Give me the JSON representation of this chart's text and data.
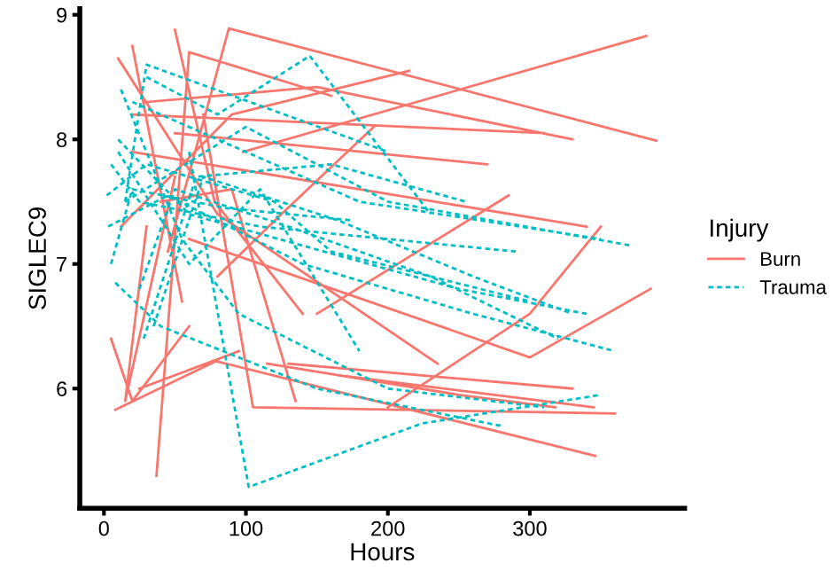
{
  "chart_data": {
    "type": "line",
    "xlabel": "Hours",
    "ylabel": "SIGLEC9",
    "legend_title": "Injury",
    "legend": "right",
    "grid": false,
    "xlim": [
      -17,
      409
    ],
    "ylim": [
      5.04,
      9.05
    ],
    "xticks": [
      0,
      100,
      200,
      300
    ],
    "yticks": [
      6,
      7,
      8,
      9
    ],
    "series": [
      {
        "name": "Burn",
        "color": "#f8766d",
        "line_style": "solid",
        "x": [
          45,
          88,
          389,
          null,
          98,
          382,
          null,
          50,
          78,
          140,
          null,
          10,
          80,
          235,
          null,
          30,
          150,
          330,
          null,
          20,
          310,
          null,
          50,
          270,
          null,
          20,
          340,
          null,
          8,
          79,
          346,
          null,
          12,
          90,
          215,
          null,
          25,
          95,
          null,
          20,
          55,
          null,
          37,
          60,
          160,
          null,
          5,
          20,
          60,
          null,
          135,
          90,
          40,
          null,
          115,
          250,
          318,
          null,
          150,
          285,
          null,
          170,
          345,
          null,
          60,
          300,
          385,
          null,
          200,
          300,
          350,
          null,
          130,
          330,
          null,
          80,
          125,
          190,
          null,
          30,
          15,
          50,
          null,
          70,
          105,
          360
        ],
        "values": [
          7.1,
          8.89,
          7.99,
          null,
          7.9,
          8.83,
          null,
          8.88,
          7.5,
          6.6,
          null,
          8.65,
          7.4,
          6.2,
          null,
          8.3,
          8.42,
          8.0,
          null,
          8.2,
          8.05,
          null,
          8.05,
          7.8,
          null,
          7.9,
          7.3,
          null,
          5.83,
          6.22,
          5.46,
          null,
          7.3,
          8.2,
          8.55,
          null,
          6.0,
          6.3,
          null,
          8.75,
          6.7,
          null,
          5.3,
          8.7,
          8.35,
          null,
          6.4,
          5.9,
          6.5,
          null,
          5.9,
          7.6,
          7.5,
          null,
          6.2,
          5.95,
          5.85,
          null,
          6.6,
          7.55,
          null,
          6.1,
          5.85,
          null,
          7.2,
          6.25,
          6.8,
          null,
          5.85,
          6.6,
          7.3,
          null,
          6.2,
          6.0,
          null,
          6.9,
          7.4,
          8.1,
          null,
          7.3,
          5.9,
          7.7,
          null,
          8.2,
          5.85,
          5.8
        ]
      },
      {
        "name": "Trauma",
        "color": "#00bfc4",
        "line_style": "dashed",
        "x": [
          60,
          102,
          224,
          350,
          null,
          15,
          30,
          200,
          null,
          30,
          80,
          145,
          230,
          null,
          5,
          25,
          110,
          290,
          null,
          20,
          90,
          180,
          350,
          null,
          10,
          60,
          250,
          340,
          null,
          2,
          30,
          120,
          160,
          300,
          null,
          15,
          100,
          200,
          370,
          null,
          25,
          50,
          130,
          230,
          320,
          null,
          8,
          40,
          150,
          280,
          null,
          10,
          60,
          110,
          180,
          null,
          3,
          45,
          140,
          260,
          360,
          null,
          35,
          70,
          165,
          260,
          330,
          null,
          12,
          55,
          95,
          200,
          310,
          null,
          28,
          65,
          160,
          255,
          null,
          5,
          20,
          85,
          175
        ],
        "values": [
          7.9,
          5.21,
          5.72,
          5.95,
          null,
          7.5,
          8.6,
          7.9,
          null,
          8.5,
          8.2,
          8.67,
          7.4,
          null,
          7.8,
          7.5,
          7.3,
          7.1,
          null,
          8.3,
          7.95,
          7.5,
          7.2,
          null,
          8.0,
          7.4,
          6.8,
          6.6,
          null,
          7.55,
          7.8,
          7.5,
          7.1,
          6.7,
          null,
          7.5,
          8.1,
          7.5,
          7.15,
          null,
          6.8,
          7.6,
          7.3,
          6.9,
          6.4,
          null,
          6.85,
          6.5,
          6.0,
          5.7,
          null,
          7.9,
          7.0,
          7.6,
          6.3,
          null,
          7.3,
          7.55,
          7.0,
          6.6,
          6.3,
          null,
          6.5,
          7.7,
          7.35,
          6.9,
          6.6,
          null,
          8.4,
          7.2,
          6.6,
          6.0,
          5.85,
          null,
          6.4,
          7.7,
          7.8,
          7.5,
          null,
          7.0,
          7.6,
          7.45,
          7.35
        ]
      }
    ]
  }
}
